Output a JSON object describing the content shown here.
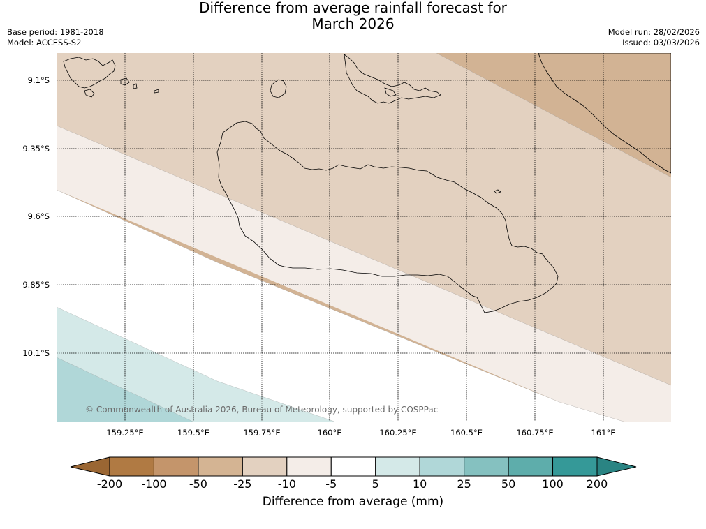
{
  "title": {
    "line1": "Difference from average rainfall forecast for",
    "line2": "March 2026"
  },
  "meta_left": {
    "base_period": "Base period: 1981-2018",
    "model": "Model: ACCESS-S2"
  },
  "meta_right": {
    "model_run": "Model run: 28/02/2026",
    "issued": "Issued: 03/03/2026"
  },
  "map": {
    "lat_labels": [
      "9.1°S",
      "9.35°S",
      "9.6°S",
      "9.85°S",
      "10.1°S"
    ],
    "lon_labels": [
      "159.25°E",
      "159.5°E",
      "159.75°E",
      "160°E",
      "160.25°E",
      "160.5°E",
      "160.75°E",
      "161°E"
    ],
    "copyright": "© Commonwealth of Australia 2026, Bureau of Meteorology, supported by COSPPac",
    "bands": [
      {
        "category": "-50 to -25",
        "color": "#d2b394"
      },
      {
        "category": "-25 to -10",
        "color": "#e3d1c0"
      },
      {
        "category": "-10 to -5",
        "color": "#f4ede8"
      },
      {
        "category": "-5 to 5",
        "color": "#ffffff"
      },
      {
        "category": "5 to 10",
        "color": "#d4e9e8"
      },
      {
        "category": "10 to 25",
        "color": "#b0d7d8"
      }
    ]
  },
  "colorbar": {
    "ticks": [
      "-200",
      "-100",
      "-50",
      "-25",
      "-10",
      "-5",
      "5",
      "10",
      "25",
      "50",
      "100",
      "200"
    ],
    "colors": [
      "#b07a43",
      "#c4956b",
      "#d4b493",
      "#e3d1c0",
      "#f4ede8",
      "#ffffff",
      "#d4e9e8",
      "#b0d7d8",
      "#85c1c0",
      "#5eadab",
      "#359998"
    ],
    "low_end_color": "#9a6633",
    "high_end_color": "#2a8483",
    "label": "Difference from average (mm)"
  }
}
